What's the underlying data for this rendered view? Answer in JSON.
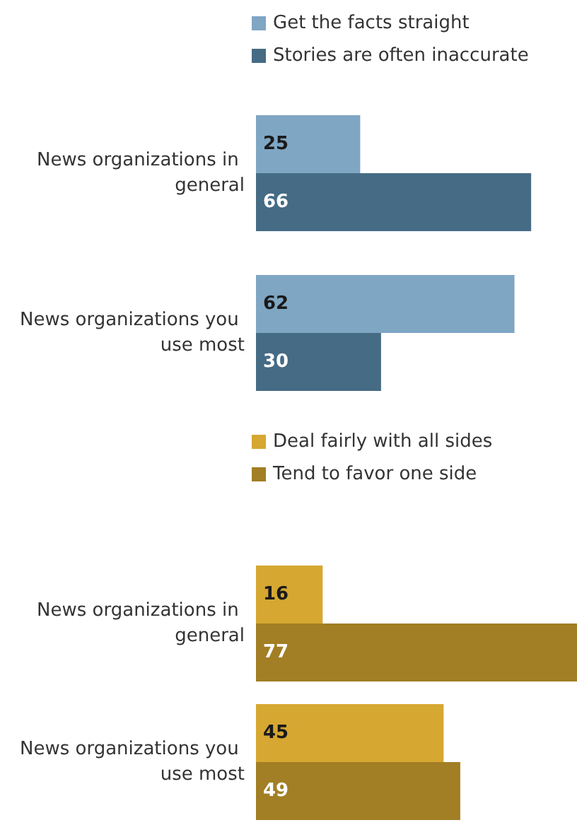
{
  "chart_data": [
    {
      "type": "bar",
      "orientation": "horizontal",
      "categories": [
        "News organizations in general",
        "News organizations you use most"
      ],
      "series": [
        {
          "name": "Get the facts straight",
          "color": "#7fa6c3",
          "values": [
            25,
            62
          ]
        },
        {
          "name": "Stories are often inaccurate",
          "color": "#456b85",
          "values": [
            66,
            30
          ]
        }
      ],
      "data_labels": true,
      "legend": "top"
    },
    {
      "type": "bar",
      "orientation": "horizontal",
      "categories": [
        "News organizations in general",
        "News organizations you use most"
      ],
      "series": [
        {
          "name": "Deal fairly with all sides",
          "color": "#d6a731",
          "values": [
            16,
            45
          ]
        },
        {
          "name": "Tend to favor one side",
          "color": "#a27e24",
          "values": [
            77,
            49
          ]
        }
      ],
      "data_labels": true,
      "legend": "top"
    }
  ]
}
